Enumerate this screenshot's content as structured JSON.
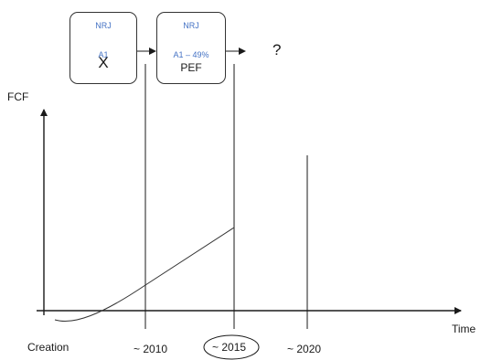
{
  "boxes": [
    {
      "top_label": "NRJ",
      "bottom_label": "A1",
      "cross_mark": "X"
    },
    {
      "top_label": "NRJ",
      "bottom_label": "A1 – 49%",
      "sub_label": "PEF"
    }
  ],
  "next_stage": "?",
  "axes": {
    "y_label": "FCF",
    "x_label": "Time"
  },
  "timeline": {
    "start": "Creation",
    "ticks": [
      "~ 2010",
      "~ 2015",
      "~ 2020"
    ],
    "highlighted": "~ 2015"
  },
  "colors": {
    "box_text": "#4472c4",
    "lines": "#1a1a1a"
  }
}
